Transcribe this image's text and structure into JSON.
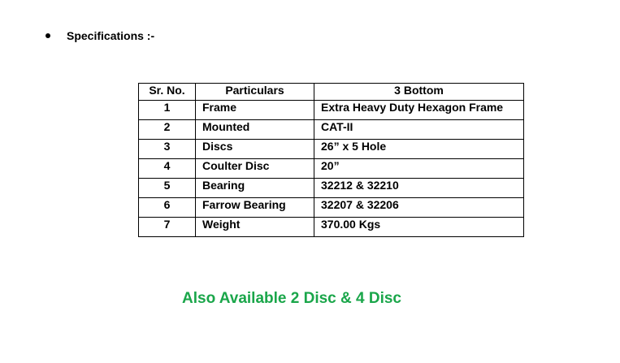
{
  "heading": "Specifications :-",
  "table": {
    "headers": [
      "Sr. No.",
      "Particulars",
      "3 Bottom"
    ],
    "rows": [
      [
        "1",
        "Frame",
        "Extra Heavy Duty Hexagon Frame"
      ],
      [
        "2",
        "Mounted",
        "CAT-II"
      ],
      [
        "3",
        "Discs",
        "26” x 5 Hole"
      ],
      [
        "4",
        "Coulter Disc",
        "20”"
      ],
      [
        "5",
        "Bearing",
        "32212 & 32210"
      ],
      [
        "6",
        "Farrow Bearing",
        "32207 & 32206"
      ],
      [
        "7",
        "Weight",
        "370.00 Kgs"
      ]
    ]
  },
  "note": "Also Available 2 Disc & 4 Disc",
  "colors": {
    "note": "#1aa64a"
  }
}
